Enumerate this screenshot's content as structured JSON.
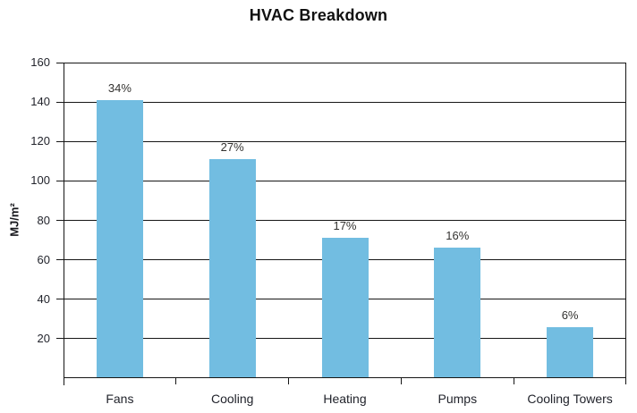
{
  "title": "HVAC Breakdown",
  "colors": {
    "bar": "#72BDE1",
    "line": "#161616",
    "tick_text": "#22242c",
    "bar_label_text": "#333230",
    "title_text": "#111111",
    "background": "#ffffff"
  },
  "chart_data": {
    "type": "bar",
    "title": "HVAC Breakdown",
    "categories": [
      "Fans",
      "Cooling",
      "Heating",
      "Pumps",
      "Cooling Towers"
    ],
    "values": [
      141,
      111,
      71,
      66,
      26
    ],
    "bar_labels": [
      "34%",
      "27%",
      "17%",
      "16%",
      "6%"
    ],
    "xlabel": "",
    "ylabel": "MJ/m²",
    "ylim": [
      0,
      160
    ],
    "yticks": [
      20,
      40,
      60,
      80,
      100,
      120,
      140,
      160
    ],
    "grid": "horizontal",
    "legend": "none"
  }
}
